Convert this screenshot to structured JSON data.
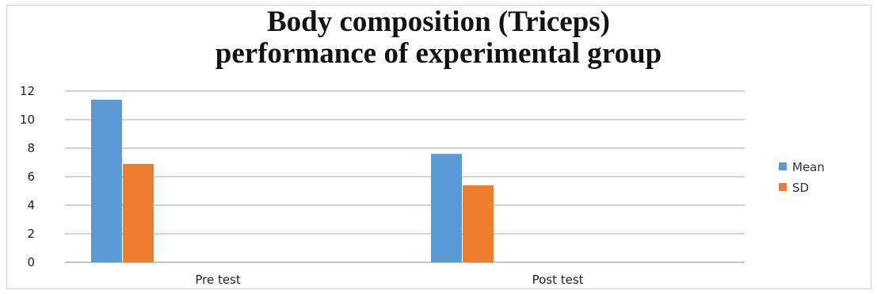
{
  "chart_data": {
    "type": "bar",
    "title_lines": [
      "Body composition (Triceps)",
      "performance of experimental group"
    ],
    "categories": [
      "Pre test",
      "Post test"
    ],
    "series": [
      {
        "name": "Mean",
        "values": [
          11.4,
          7.6
        ],
        "color": "#5B9BD5"
      },
      {
        "name": "SD",
        "values": [
          6.9,
          5.4
        ],
        "color": "#ED7D31"
      }
    ],
    "ylim": [
      0,
      12
    ],
    "yticks": [
      0,
      2,
      4,
      6,
      8,
      10,
      12
    ],
    "grid": true,
    "legend_position": "right",
    "gridline_color": "#a6a6a6",
    "axis_color": "#888888"
  }
}
